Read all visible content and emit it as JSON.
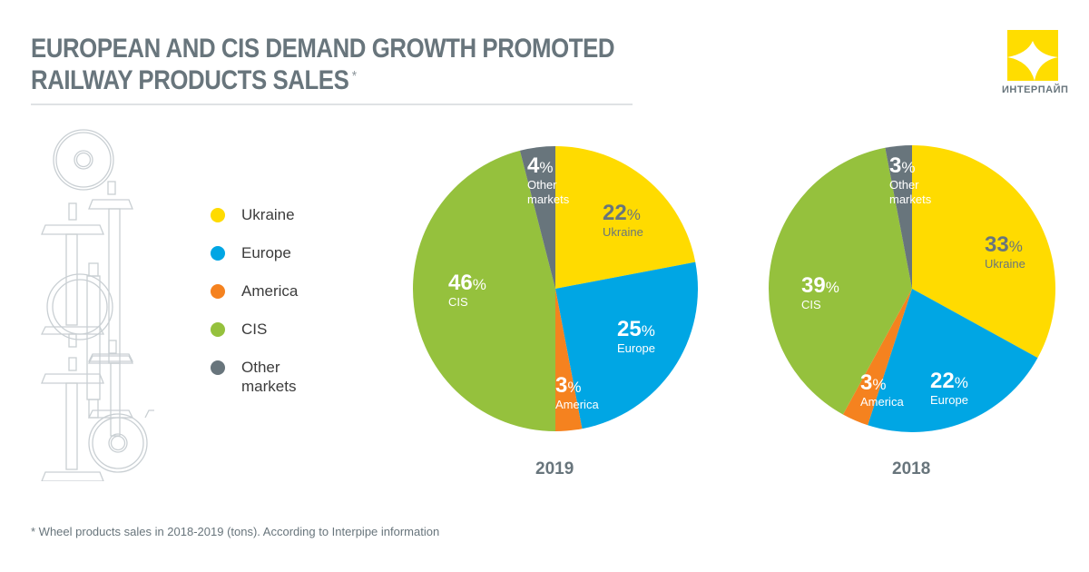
{
  "header": {
    "title_line1": "EUROPEAN AND CIS DEMAND GROWTH PROMOTED",
    "title_line2": "RAILWAY PRODUCTS SALES",
    "title_asterisk": "*"
  },
  "logo": {
    "text": "ИНТЕРПАЙП",
    "color": "#ffdd00"
  },
  "legend": [
    {
      "label": "Ukraine",
      "color": "#ffdb00"
    },
    {
      "label": "Europe",
      "color": "#00a6e4"
    },
    {
      "label": "America",
      "color": "#f5821f"
    },
    {
      "label": "CIS",
      "color": "#95c13d"
    },
    {
      "label": "Other markets",
      "color": "#68757c"
    }
  ],
  "footnote": "* Wheel products sales in 2018-2019 (tons). According to Interpipe information",
  "chart_data": [
    {
      "type": "pie",
      "title": "2019",
      "unit": "%",
      "start": "12 o'clock, clockwise",
      "slices": [
        {
          "label": "Ukraine",
          "value": 22,
          "color": "#ffdb00",
          "text_color": "#68757c"
        },
        {
          "label": "Europe",
          "value": 25,
          "color": "#00a6e4",
          "text_color": "#ffffff"
        },
        {
          "label": "America",
          "value": 3,
          "color": "#f5821f",
          "text_color": "#ffffff"
        },
        {
          "label": "CIS",
          "value": 46,
          "color": "#95c13d",
          "text_color": "#ffffff"
        },
        {
          "label": "Other markets",
          "value": 4,
          "color": "#68757c",
          "text_color": "#ffffff"
        }
      ]
    },
    {
      "type": "pie",
      "title": "2018",
      "unit": "%",
      "start": "12 o'clock, clockwise",
      "slices": [
        {
          "label": "Ukraine",
          "value": 33,
          "color": "#ffdb00",
          "text_color": "#68757c"
        },
        {
          "label": "Europe",
          "value": 22,
          "color": "#00a6e4",
          "text_color": "#ffffff"
        },
        {
          "label": "America",
          "value": 3,
          "color": "#f5821f",
          "text_color": "#ffffff"
        },
        {
          "label": "CIS",
          "value": 39,
          "color": "#95c13d",
          "text_color": "#ffffff"
        },
        {
          "label": "Other markets",
          "value": 3,
          "color": "#68757c",
          "text_color": "#ffffff"
        }
      ]
    }
  ]
}
